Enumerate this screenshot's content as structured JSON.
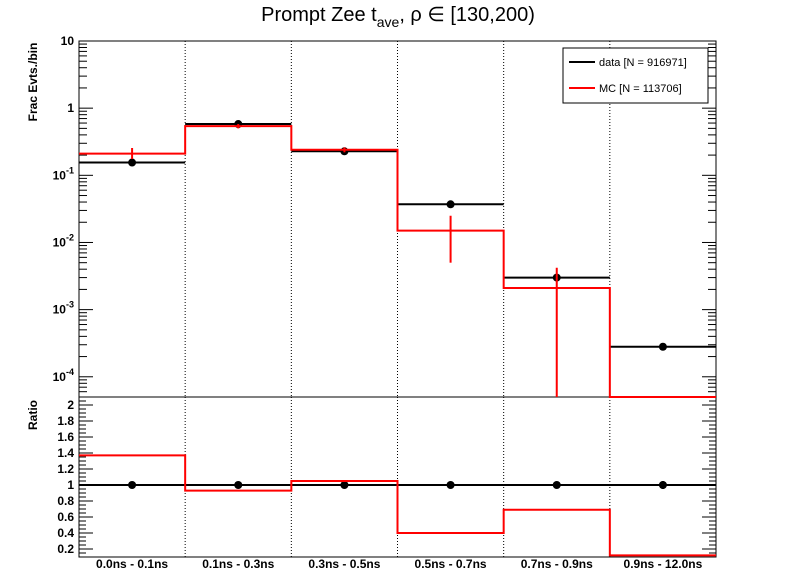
{
  "chart_data": [
    {
      "type": "step",
      "title": {
        "main": "Prompt Zee t",
        "sub": "ave",
        "rest": ",  ρ ∈ [130,200)"
      },
      "ylabel": "Frac Evts./bin",
      "yscale": "log",
      "ylim": [
        5e-05,
        10
      ],
      "ytick_labels": [
        {
          "value": 10,
          "base": "10",
          "exp": ""
        },
        {
          "value": 1,
          "base": "1",
          "exp": ""
        },
        {
          "value": 0.1,
          "base": "10",
          "exp": "-1"
        },
        {
          "value": 0.01,
          "base": "10",
          "exp": "-2"
        },
        {
          "value": 0.001,
          "base": "10",
          "exp": "-3"
        },
        {
          "value": 0.0001,
          "base": "10",
          "exp": "-4"
        }
      ],
      "categories": [
        "0.0ns - 0.1ns",
        "0.1ns - 0.3ns",
        "0.3ns - 0.5ns",
        "0.5ns - 0.7ns",
        "0.7ns - 0.9ns",
        "0.9ns - 12.0ns"
      ],
      "grid": "vertical dotted at bin edges",
      "legend": {
        "position": "top-right",
        "entries": [
          {
            "label": "data [N = 916971]",
            "color": "#000000"
          },
          {
            "label": "MC [N = 113706]",
            "color": "#ff0000"
          }
        ]
      },
      "series": [
        {
          "name": "data [N = 916971]",
          "color": "#000000",
          "values": [
            0.155,
            0.58,
            0.228,
            0.037,
            0.003,
            0.00028
          ],
          "errors": [
            0.003,
            0.008,
            0.004,
            0.001,
            0.0003,
            2e-05
          ]
        },
        {
          "name": "MC [N = 113706]",
          "color": "#ff0000",
          "values": [
            0.21,
            0.54,
            0.24,
            0.015,
            0.0021,
            null
          ],
          "err_low": [
            0.175,
            0.5,
            0.22,
            0.005,
            5e-05,
            null
          ],
          "err_high": [
            0.255,
            0.58,
            0.26,
            0.025,
            0.0042,
            null
          ]
        }
      ]
    },
    {
      "type": "step",
      "ylabel": "Ratio",
      "ylim": [
        0.1,
        2.1
      ],
      "ytick_labels": [
        "0.2",
        "0.4",
        "0.6",
        "0.8",
        "1",
        "1.2",
        "1.4",
        "1.6",
        "1.8",
        "2"
      ],
      "reference_line": 1,
      "categories": [
        "0.0ns - 0.1ns",
        "0.1ns - 0.3ns",
        "0.3ns - 0.5ns",
        "0.5ns - 0.7ns",
        "0.7ns - 0.9ns",
        "0.9ns - 12.0ns"
      ],
      "series": [
        {
          "name": "",
          "color": "#000000",
          "values": [
            1,
            1,
            1,
            1,
            1,
            1
          ],
          "errors": [
            0.02,
            0.015,
            0.02,
            0.02,
            0.02,
            0.05
          ]
        },
        {
          "name": "",
          "color": "#ff0000",
          "values": [
            1.37,
            0.93,
            1.05,
            0.4,
            0.69,
            0.12
          ]
        }
      ]
    }
  ]
}
